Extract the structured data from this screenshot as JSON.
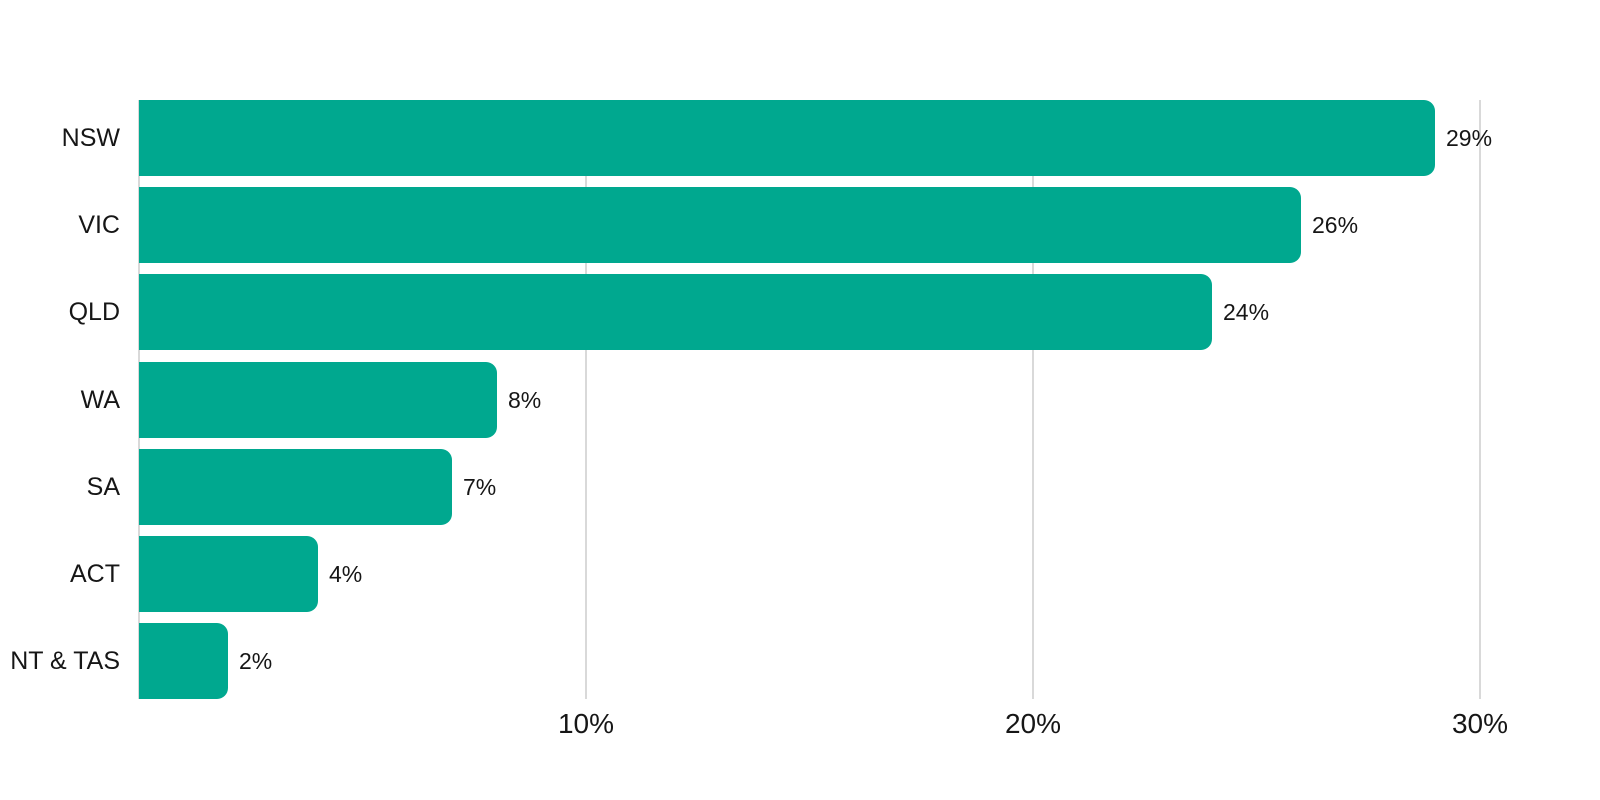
{
  "chart": {
    "background_color": "#ffffff",
    "bar_color": "#00a88f",
    "gridline_color": "#d9d9d9",
    "text_color": "#161616"
  },
  "chart_data": {
    "type": "bar",
    "orientation": "horizontal",
    "title": "",
    "xlabel": "",
    "ylabel": "",
    "legend": "none",
    "grid": "vertical-only",
    "categories": [
      "NSW",
      "VIC",
      "QLD",
      "WA",
      "SA",
      "ACT",
      "NT & TAS"
    ],
    "values": [
      29,
      26,
      24,
      8,
      7,
      4,
      2
    ],
    "value_labels": [
      "29%",
      "26%",
      "24%",
      "8%",
      "7%",
      "4%",
      "2%"
    ],
    "xlim": [
      0,
      30
    ],
    "x_ticks": [
      {
        "value": 0,
        "label": ""
      },
      {
        "value": 10,
        "label": "10%"
      },
      {
        "value": 20,
        "label": "20%"
      },
      {
        "value": 30,
        "label": "30%"
      }
    ]
  }
}
